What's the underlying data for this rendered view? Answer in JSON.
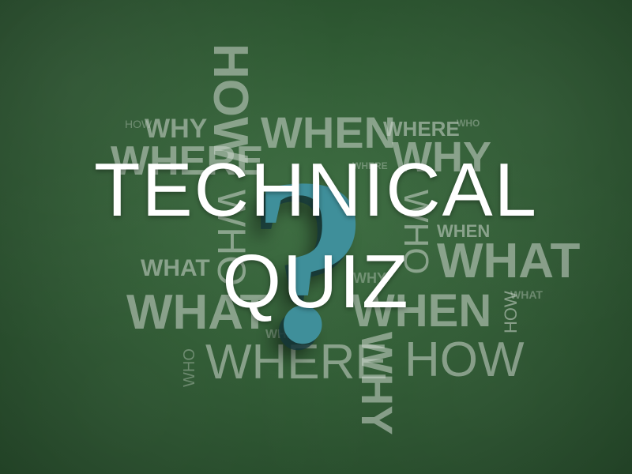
{
  "title": {
    "line1": "TECHNICAL",
    "line2": "QUIZ"
  },
  "question_mark": "?",
  "words": {
    "how_top_vertical": "HOW",
    "how_small_left": "HOW",
    "why_small_left": "WHY",
    "when_top": "WHEN",
    "where_top_right": "WHERE",
    "who_tiny_top_right": "WHO",
    "where_left": "WHERE",
    "why_right": "WHY",
    "who_vertical_center": "WHO",
    "where_tiny_center": "WHERE",
    "who_vertical_right": "WHO",
    "when_right_small": "WHEN",
    "what_right_big": "WHAT",
    "what_left_small": "WHAT",
    "why_center_small": "WHY",
    "what_left_big": "WHAT",
    "when_bottom_right": "WHEN",
    "how_vertical_right": "HOW",
    "what_right_tiny": "WHAT",
    "when_small_center": "WHEN",
    "who_vertical_bottom": "WHO",
    "where_bottom": "WHERE",
    "why_vertical_bottom": "WHY",
    "how_bottom_right": "HOW"
  },
  "colors": {
    "board": "#2f5a33",
    "question_mark": "#3f8f9a",
    "title": "#ffffff",
    "chalk_text": "#cdd7cd"
  }
}
